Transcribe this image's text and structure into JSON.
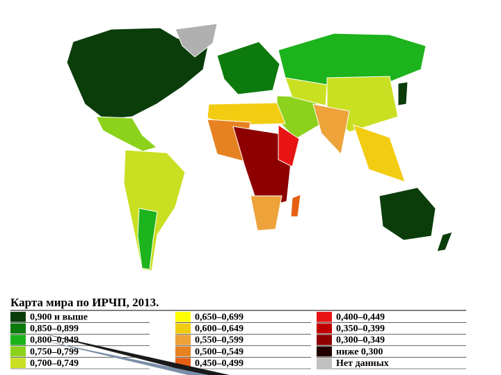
{
  "legend": {
    "title": "Карта мира по ИРЧП, 2013.",
    "items": [
      {
        "label": "0,900 и выше",
        "color": "#0b3d0b"
      },
      {
        "label": "0,850–0,899",
        "color": "#0d7a0d"
      },
      {
        "label": "0,800–0,849",
        "color": "#1cb31c"
      },
      {
        "label": "0,750–0,799",
        "color": "#8cd21c"
      },
      {
        "label": "0,700–0,749",
        "color": "#c9df22"
      },
      {
        "label": "0,650–0,699",
        "color": "#ffff00"
      },
      {
        "label": "0,600–0,649",
        "color": "#f2cc10"
      },
      {
        "label": "0,550–0,599",
        "color": "#eda23a"
      },
      {
        "label": "0,500–0,549",
        "color": "#e78222"
      },
      {
        "label": "0,450–0,499",
        "color": "#e65f12"
      },
      {
        "label": "0,400–0,449",
        "color": "#e81414"
      },
      {
        "label": "0,350–0,399",
        "color": "#c00000"
      },
      {
        "label": "0,300–0,349",
        "color": "#8e0000"
      },
      {
        "label": "ниже 0,300",
        "color": "#220000"
      },
      {
        "label": "Нет данных",
        "color": "#c0c0c0"
      }
    ]
  }
}
